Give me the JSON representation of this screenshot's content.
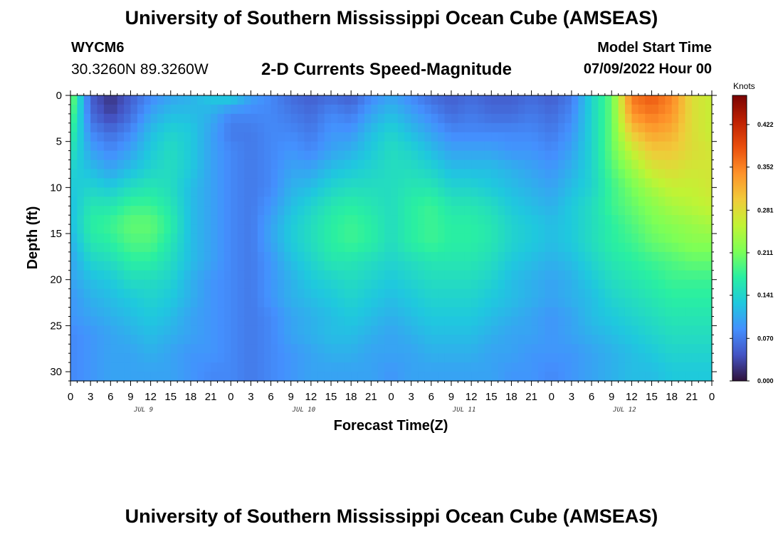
{
  "header": {
    "title": "University of Southern Mississippi Ocean Cube (AMSEAS)",
    "station_id": "WYCM6",
    "coords": "30.3260N  89.3260W",
    "subtitle": "2-D Currents Speed-Magnitude",
    "model_start_label": "Model Start Time",
    "model_start_value": "07/09/2022 Hour 00"
  },
  "footer": {
    "title": "University of Southern Mississippi Ocean Cube (AMSEAS)"
  },
  "chart_data": {
    "type": "heatmap",
    "title": "2-D Currents Speed-Magnitude",
    "xlabel": "Forecast Time(Z)",
    "ylabel": "Depth (ft)",
    "x_tick_labels": [
      "0",
      "3",
      "6",
      "9",
      "12",
      "15",
      "18",
      "21",
      "0",
      "3",
      "6",
      "9",
      "12",
      "15",
      "18",
      "21",
      "0",
      "3",
      "6",
      "9",
      "12",
      "15",
      "18",
      "21",
      "0",
      "3",
      "6",
      "9",
      "12",
      "15",
      "18",
      "21",
      "0"
    ],
    "x_range_hours": [
      0,
      96
    ],
    "day_labels": [
      "JUL 9",
      "JUL 10",
      "JUL 11",
      "JUL 12"
    ],
    "y_range_ft": [
      0,
      31
    ],
    "y_tick_values": [
      0,
      5,
      10,
      15,
      20,
      25,
      30
    ],
    "y_tick_labels": [
      "0",
      "5",
      "10",
      "15",
      "20",
      "25",
      "30"
    ],
    "colorbar": {
      "units": "Knots",
      "range": [
        0,
        0.47
      ],
      "tick_values": [
        0.0,
        0.07,
        0.141,
        0.211,
        0.281,
        0.352,
        0.422
      ],
      "tick_labels": [
        "0.000",
        "0.070",
        "0.141",
        "0.211",
        "0.281",
        "0.352",
        "0.422"
      ],
      "colors": [
        "#30123b",
        "#4454c4",
        "#4490fe",
        "#1fc8de",
        "#29efa2",
        "#7dff56",
        "#c1f334",
        "#f1ca3a",
        "#fe922a",
        "#ea4f0d",
        "#be2102",
        "#7a0403"
      ]
    },
    "time_columns_hours": [
      0,
      3,
      6,
      9,
      12,
      15,
      18,
      21,
      24,
      27,
      30,
      33,
      36,
      39,
      42,
      45,
      48,
      51,
      54,
      57,
      60,
      63,
      66,
      69,
      72,
      75,
      78,
      81,
      84,
      87,
      90,
      93,
      96
    ],
    "depth_rows_ft": [
      0,
      2,
      4,
      6,
      8,
      10,
      12,
      14,
      16,
      18,
      20,
      22,
      24,
      26,
      28,
      30,
      31
    ],
    "speed_knots": [
      [
        0.22,
        0.05,
        0.02,
        0.05,
        0.08,
        0.1,
        0.11,
        0.13,
        0.14,
        0.1,
        0.08,
        0.06,
        0.05,
        0.06,
        0.05,
        0.08,
        0.1,
        0.08,
        0.06,
        0.05,
        0.06,
        0.05,
        0.05,
        0.06,
        0.05,
        0.07,
        0.14,
        0.2,
        0.36,
        0.38,
        0.35,
        0.28,
        0.26
      ],
      [
        0.2,
        0.06,
        0.03,
        0.06,
        0.1,
        0.12,
        0.12,
        0.11,
        0.08,
        0.08,
        0.08,
        0.07,
        0.06,
        0.08,
        0.07,
        0.1,
        0.12,
        0.1,
        0.08,
        0.06,
        0.07,
        0.06,
        0.06,
        0.07,
        0.06,
        0.08,
        0.14,
        0.2,
        0.34,
        0.36,
        0.34,
        0.28,
        0.26
      ],
      [
        0.18,
        0.08,
        0.06,
        0.08,
        0.12,
        0.14,
        0.13,
        0.1,
        0.07,
        0.07,
        0.08,
        0.08,
        0.07,
        0.09,
        0.09,
        0.12,
        0.14,
        0.12,
        0.1,
        0.08,
        0.08,
        0.08,
        0.08,
        0.08,
        0.07,
        0.09,
        0.14,
        0.2,
        0.3,
        0.33,
        0.32,
        0.28,
        0.26
      ],
      [
        0.16,
        0.1,
        0.08,
        0.1,
        0.13,
        0.15,
        0.13,
        0.1,
        0.08,
        0.07,
        0.08,
        0.09,
        0.08,
        0.1,
        0.11,
        0.13,
        0.15,
        0.14,
        0.12,
        0.1,
        0.1,
        0.1,
        0.09,
        0.09,
        0.08,
        0.1,
        0.14,
        0.2,
        0.26,
        0.3,
        0.3,
        0.28,
        0.27
      ],
      [
        0.14,
        0.12,
        0.1,
        0.12,
        0.14,
        0.15,
        0.13,
        0.1,
        0.08,
        0.07,
        0.08,
        0.1,
        0.1,
        0.12,
        0.13,
        0.14,
        0.15,
        0.15,
        0.14,
        0.12,
        0.12,
        0.12,
        0.11,
        0.1,
        0.09,
        0.11,
        0.14,
        0.19,
        0.23,
        0.27,
        0.28,
        0.27,
        0.27
      ],
      [
        0.13,
        0.14,
        0.13,
        0.15,
        0.16,
        0.15,
        0.12,
        0.1,
        0.08,
        0.07,
        0.08,
        0.11,
        0.12,
        0.14,
        0.15,
        0.15,
        0.15,
        0.16,
        0.16,
        0.14,
        0.14,
        0.13,
        0.12,
        0.11,
        0.1,
        0.12,
        0.14,
        0.18,
        0.21,
        0.24,
        0.26,
        0.26,
        0.27
      ],
      [
        0.12,
        0.16,
        0.16,
        0.18,
        0.18,
        0.16,
        0.12,
        0.1,
        0.08,
        0.07,
        0.09,
        0.12,
        0.14,
        0.16,
        0.17,
        0.16,
        0.15,
        0.17,
        0.18,
        0.16,
        0.16,
        0.15,
        0.13,
        0.12,
        0.11,
        0.13,
        0.15,
        0.18,
        0.2,
        0.22,
        0.24,
        0.25,
        0.26
      ],
      [
        0.12,
        0.17,
        0.18,
        0.2,
        0.2,
        0.17,
        0.12,
        0.1,
        0.08,
        0.07,
        0.1,
        0.13,
        0.15,
        0.17,
        0.18,
        0.17,
        0.15,
        0.17,
        0.18,
        0.17,
        0.17,
        0.16,
        0.14,
        0.13,
        0.12,
        0.13,
        0.15,
        0.17,
        0.19,
        0.21,
        0.22,
        0.23,
        0.24
      ],
      [
        0.11,
        0.16,
        0.17,
        0.19,
        0.19,
        0.16,
        0.12,
        0.1,
        0.08,
        0.07,
        0.1,
        0.13,
        0.15,
        0.17,
        0.18,
        0.17,
        0.15,
        0.17,
        0.18,
        0.17,
        0.17,
        0.16,
        0.14,
        0.13,
        0.12,
        0.13,
        0.15,
        0.17,
        0.18,
        0.2,
        0.21,
        0.22,
        0.22
      ],
      [
        0.1,
        0.14,
        0.15,
        0.17,
        0.17,
        0.15,
        0.12,
        0.1,
        0.08,
        0.07,
        0.09,
        0.12,
        0.14,
        0.16,
        0.16,
        0.15,
        0.14,
        0.15,
        0.16,
        0.16,
        0.16,
        0.15,
        0.13,
        0.12,
        0.11,
        0.12,
        0.14,
        0.16,
        0.17,
        0.18,
        0.19,
        0.2,
        0.2
      ],
      [
        0.1,
        0.12,
        0.13,
        0.15,
        0.15,
        0.14,
        0.11,
        0.09,
        0.08,
        0.07,
        0.09,
        0.11,
        0.13,
        0.14,
        0.15,
        0.14,
        0.13,
        0.14,
        0.15,
        0.15,
        0.15,
        0.14,
        0.12,
        0.11,
        0.1,
        0.11,
        0.13,
        0.15,
        0.16,
        0.17,
        0.18,
        0.18,
        0.18
      ],
      [
        0.09,
        0.11,
        0.12,
        0.13,
        0.14,
        0.13,
        0.11,
        0.09,
        0.08,
        0.07,
        0.09,
        0.11,
        0.12,
        0.13,
        0.14,
        0.13,
        0.12,
        0.13,
        0.14,
        0.14,
        0.14,
        0.13,
        0.12,
        0.11,
        0.1,
        0.11,
        0.12,
        0.14,
        0.15,
        0.16,
        0.17,
        0.17,
        0.17
      ],
      [
        0.09,
        0.1,
        0.11,
        0.12,
        0.13,
        0.12,
        0.1,
        0.09,
        0.08,
        0.07,
        0.08,
        0.1,
        0.11,
        0.12,
        0.13,
        0.12,
        0.11,
        0.12,
        0.13,
        0.13,
        0.13,
        0.12,
        0.11,
        0.1,
        0.09,
        0.1,
        0.12,
        0.13,
        0.14,
        0.15,
        0.16,
        0.16,
        0.16
      ],
      [
        0.08,
        0.09,
        0.1,
        0.11,
        0.12,
        0.11,
        0.1,
        0.09,
        0.08,
        0.07,
        0.08,
        0.1,
        0.11,
        0.12,
        0.12,
        0.11,
        0.1,
        0.11,
        0.12,
        0.12,
        0.12,
        0.11,
        0.1,
        0.1,
        0.09,
        0.1,
        0.11,
        0.12,
        0.13,
        0.14,
        0.15,
        0.15,
        0.15
      ],
      [
        0.08,
        0.09,
        0.1,
        0.1,
        0.11,
        0.1,
        0.09,
        0.09,
        0.08,
        0.07,
        0.08,
        0.09,
        0.1,
        0.11,
        0.11,
        0.1,
        0.1,
        0.1,
        0.11,
        0.11,
        0.11,
        0.1,
        0.1,
        0.09,
        0.09,
        0.09,
        0.1,
        0.11,
        0.12,
        0.13,
        0.14,
        0.14,
        0.14
      ],
      [
        0.08,
        0.09,
        0.1,
        0.1,
        0.1,
        0.1,
        0.09,
        0.08,
        0.08,
        0.07,
        0.08,
        0.09,
        0.1,
        0.1,
        0.1,
        0.1,
        0.09,
        0.1,
        0.1,
        0.1,
        0.1,
        0.1,
        0.09,
        0.09,
        0.08,
        0.09,
        0.1,
        0.11,
        0.12,
        0.12,
        0.13,
        0.13,
        0.13
      ],
      [
        0.08,
        0.09,
        0.1,
        0.1,
        0.1,
        0.1,
        0.09,
        0.08,
        0.08,
        0.07,
        0.08,
        0.09,
        0.1,
        0.1,
        0.1,
        0.1,
        0.09,
        0.1,
        0.1,
        0.1,
        0.1,
        0.1,
        0.09,
        0.09,
        0.08,
        0.09,
        0.1,
        0.11,
        0.12,
        0.12,
        0.13,
        0.13,
        0.13
      ]
    ]
  }
}
